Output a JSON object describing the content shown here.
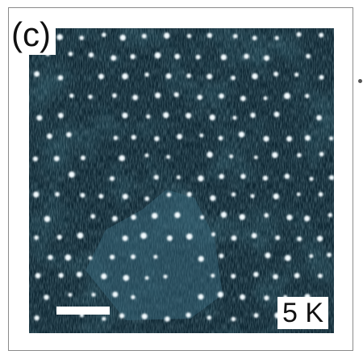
{
  "figure": {
    "panel_label": "(c)",
    "temperature_label": "5 K",
    "colors": {
      "background": "#0e2733",
      "mid_tone": "#3d6f82",
      "bright_spot": "#f2fbff",
      "dark_patch": "#081820",
      "scale_bar": "#ffffff"
    },
    "icons": [
      "scale-bar-icon"
    ]
  }
}
